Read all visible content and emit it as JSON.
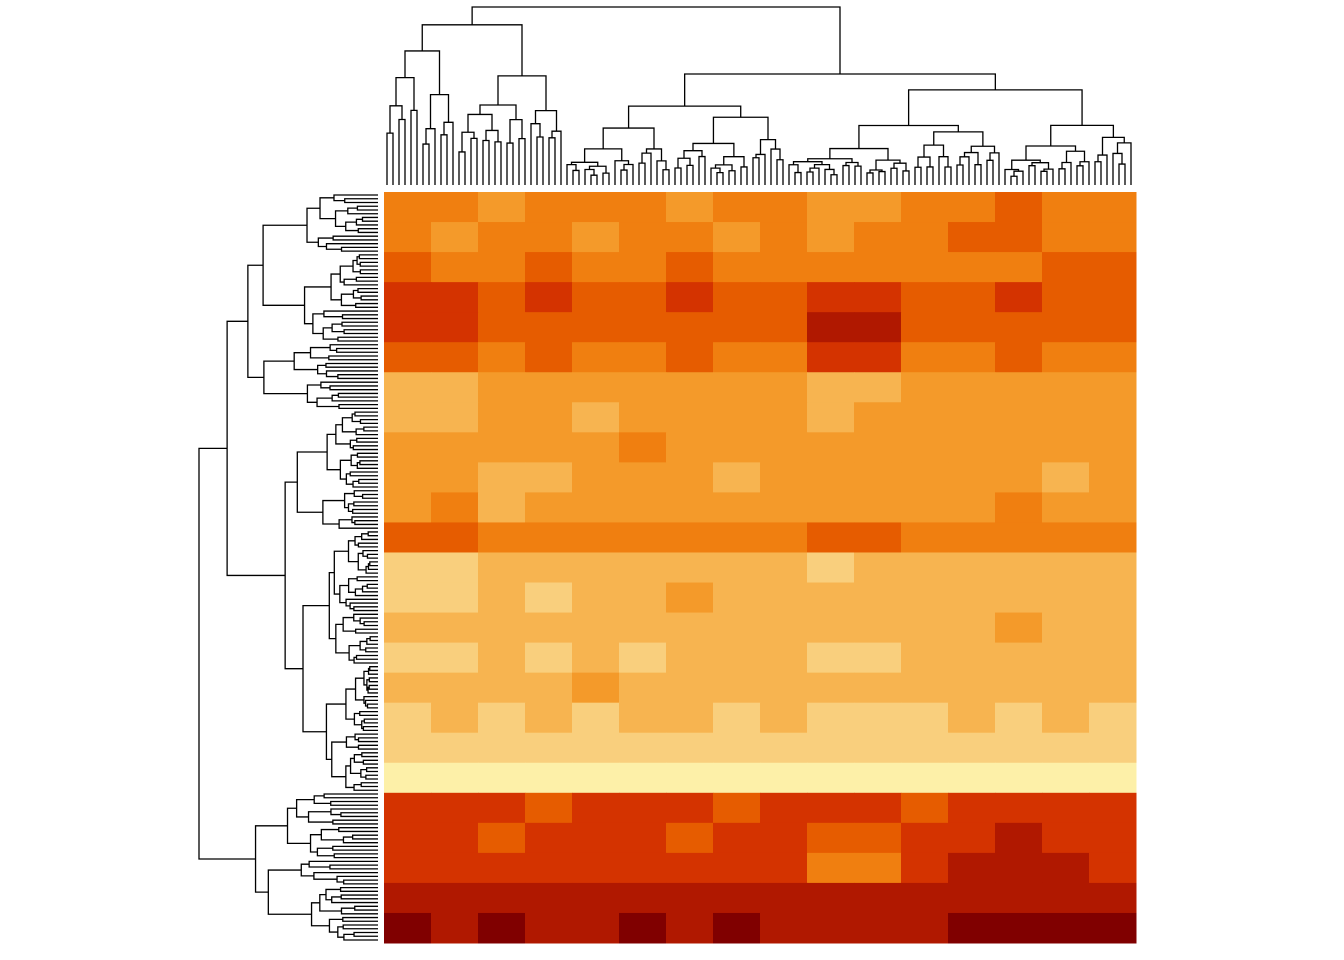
{
  "chart_data": {
    "type": "heatmap",
    "colors": [
      "#800000",
      "#b01800",
      "#d43300",
      "#e65c00",
      "#f07f10",
      "#f49a2a",
      "#f7b450",
      "#f9cf7d",
      "#fdf0a8"
    ],
    "values": [
      [
        5,
        5,
        6,
        5,
        5,
        5,
        6,
        5,
        5,
        6,
        6,
        5,
        5,
        4,
        5,
        5
      ],
      [
        5,
        6,
        5,
        5,
        6,
        5,
        5,
        6,
        5,
        6,
        5,
        5,
        4,
        4,
        5,
        5
      ],
      [
        4,
        5,
        5,
        4,
        5,
        5,
        4,
        5,
        5,
        5,
        5,
        5,
        5,
        5,
        4,
        4
      ],
      [
        3,
        3,
        4,
        3,
        4,
        4,
        3,
        4,
        4,
        3,
        3,
        4,
        4,
        3,
        4,
        4
      ],
      [
        3,
        3,
        4,
        4,
        4,
        4,
        4,
        4,
        4,
        2,
        2,
        4,
        4,
        4,
        4,
        4
      ],
      [
        4,
        4,
        5,
        4,
        5,
        5,
        4,
        5,
        5,
        3,
        3,
        5,
        5,
        4,
        5,
        5
      ],
      [
        7,
        7,
        6,
        6,
        6,
        6,
        6,
        6,
        6,
        7,
        7,
        6,
        6,
        6,
        6,
        6
      ],
      [
        7,
        7,
        6,
        6,
        7,
        6,
        6,
        6,
        6,
        7,
        6,
        6,
        6,
        6,
        6,
        6
      ],
      [
        6,
        6,
        6,
        6,
        6,
        5,
        6,
        6,
        6,
        6,
        6,
        6,
        6,
        6,
        6,
        6
      ],
      [
        6,
        6,
        7,
        7,
        6,
        6,
        6,
        7,
        6,
        6,
        6,
        6,
        6,
        6,
        7,
        6
      ],
      [
        6,
        5,
        7,
        6,
        6,
        6,
        6,
        6,
        6,
        6,
        6,
        6,
        6,
        5,
        6,
        6
      ],
      [
        4,
        4,
        5,
        5,
        5,
        5,
        5,
        5,
        5,
        4,
        4,
        5,
        5,
        5,
        5,
        5
      ],
      [
        8,
        8,
        7,
        7,
        7,
        7,
        7,
        7,
        7,
        8,
        7,
        7,
        7,
        7,
        7,
        7
      ],
      [
        8,
        8,
        7,
        8,
        7,
        7,
        6,
        7,
        7,
        7,
        7,
        7,
        7,
        7,
        7,
        7
      ],
      [
        7,
        7,
        7,
        7,
        7,
        7,
        7,
        7,
        7,
        7,
        7,
        7,
        7,
        6,
        7,
        7
      ],
      [
        8,
        8,
        7,
        8,
        7,
        8,
        7,
        7,
        7,
        8,
        8,
        7,
        7,
        7,
        7,
        7
      ],
      [
        7,
        7,
        7,
        7,
        6,
        7,
        7,
        7,
        7,
        7,
        7,
        7,
        7,
        7,
        7,
        7
      ],
      [
        8,
        7,
        8,
        7,
        8,
        7,
        7,
        8,
        7,
        8,
        8,
        8,
        7,
        8,
        7,
        8
      ],
      [
        8,
        8,
        8,
        8,
        8,
        8,
        8,
        8,
        8,
        8,
        8,
        8,
        8,
        8,
        8,
        8
      ],
      [
        9,
        9,
        9,
        9,
        9,
        9,
        9,
        9,
        9,
        9,
        9,
        9,
        9,
        9,
        9,
        9
      ],
      [
        3,
        3,
        3,
        4,
        3,
        3,
        3,
        4,
        3,
        3,
        3,
        4,
        3,
        3,
        3,
        3
      ],
      [
        3,
        3,
        4,
        3,
        3,
        3,
        4,
        3,
        3,
        4,
        4,
        3,
        3,
        2,
        3,
        3
      ],
      [
        3,
        3,
        3,
        3,
        3,
        3,
        3,
        3,
        3,
        5,
        5,
        3,
        2,
        2,
        2,
        3
      ],
      [
        2,
        2,
        2,
        2,
        2,
        2,
        2,
        2,
        2,
        2,
        2,
        2,
        2,
        2,
        2,
        2
      ],
      [
        1,
        2,
        1,
        2,
        2,
        1,
        2,
        1,
        2,
        2,
        2,
        2,
        1,
        1,
        1,
        1
      ]
    ]
  }
}
